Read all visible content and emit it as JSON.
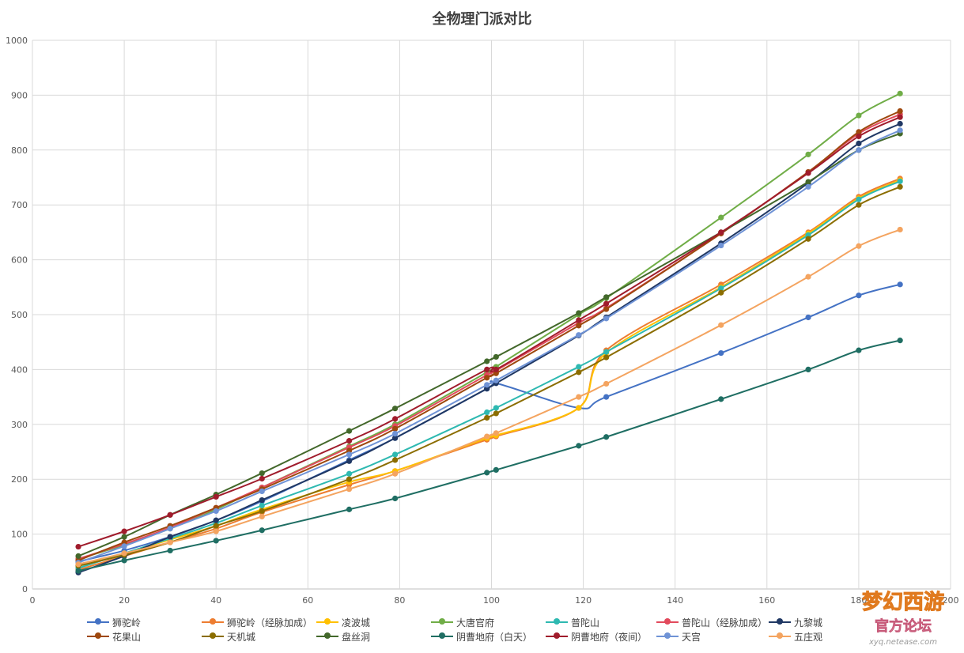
{
  "chart_data": {
    "type": "line",
    "title": "全物理门派对比",
    "xlim": [
      0,
      200
    ],
    "ylim": [
      0,
      1000
    ],
    "xticks": [
      0,
      20,
      40,
      60,
      80,
      100,
      120,
      140,
      160,
      180,
      200
    ],
    "yticks": [
      0,
      100,
      200,
      300,
      400,
      500,
      600,
      700,
      800,
      900,
      1000
    ],
    "grid": true,
    "legend_position": "bottom",
    "series": [
      {
        "name": "狮驼岭",
        "color": "#4472C4",
        "points": [
          [
            10,
            50
          ],
          [
            20,
            70
          ],
          [
            30,
            95
          ],
          [
            40,
            125
          ],
          [
            50,
            160
          ],
          [
            69,
            235
          ],
          [
            79,
            275
          ],
          [
            99,
            365
          ],
          [
            101,
            375
          ],
          [
            119,
            330
          ],
          [
            125,
            350
          ],
          [
            150,
            430
          ],
          [
            169,
            495
          ],
          [
            180,
            535
          ],
          [
            189,
            555
          ]
        ]
      },
      {
        "name": "狮驼岭（经脉加成）",
        "color": "#ED7D31",
        "points": [
          [
            10,
            35
          ],
          [
            20,
            60
          ],
          [
            30,
            85
          ],
          [
            40,
            110
          ],
          [
            50,
            140
          ],
          [
            69,
            190
          ],
          [
            79,
            215
          ],
          [
            99,
            272
          ],
          [
            101,
            278
          ],
          [
            119,
            330
          ],
          [
            125,
            435
          ],
          [
            150,
            555
          ],
          [
            169,
            650
          ],
          [
            180,
            715
          ],
          [
            189,
            748
          ]
        ]
      },
      {
        "name": "凌波城",
        "color": "#FFC000",
        "points": [
          [
            10,
            45
          ],
          [
            20,
            65
          ],
          [
            30,
            90
          ],
          [
            40,
            115
          ],
          [
            50,
            145
          ],
          [
            69,
            195
          ],
          [
            79,
            215
          ],
          [
            99,
            275
          ],
          [
            101,
            280
          ],
          [
            119,
            330
          ],
          [
            125,
            430
          ],
          [
            150,
            550
          ],
          [
            169,
            648
          ],
          [
            180,
            712
          ],
          [
            189,
            745
          ]
        ]
      },
      {
        "name": "大唐官府",
        "color": "#70AD47",
        "points": [
          [
            10,
            55
          ],
          [
            20,
            80
          ],
          [
            30,
            110
          ],
          [
            40,
            145
          ],
          [
            50,
            185
          ],
          [
            69,
            260
          ],
          [
            79,
            300
          ],
          [
            99,
            395
          ],
          [
            101,
            405
          ],
          [
            119,
            500
          ],
          [
            125,
            530
          ],
          [
            150,
            677
          ],
          [
            169,
            792
          ],
          [
            180,
            863
          ],
          [
            189,
            903
          ]
        ]
      },
      {
        "name": "普陀山",
        "color": "#2EB9B1",
        "points": [
          [
            10,
            38
          ],
          [
            20,
            65
          ],
          [
            30,
            92
          ],
          [
            40,
            120
          ],
          [
            50,
            152
          ],
          [
            69,
            210
          ],
          [
            79,
            245
          ],
          [
            99,
            322
          ],
          [
            101,
            330
          ],
          [
            119,
            405
          ],
          [
            125,
            432
          ],
          [
            150,
            548
          ],
          [
            169,
            645
          ],
          [
            180,
            710
          ],
          [
            189,
            743
          ]
        ]
      },
      {
        "name": "普陀山（经脉加成）",
        "color": "#E24A5C",
        "points": [
          [
            10,
            55
          ],
          [
            20,
            82
          ],
          [
            30,
            112
          ],
          [
            40,
            148
          ],
          [
            50,
            185
          ],
          [
            69,
            258
          ],
          [
            79,
            297
          ],
          [
            99,
            390
          ],
          [
            101,
            398
          ],
          [
            119,
            485
          ],
          [
            125,
            512
          ],
          [
            150,
            648
          ],
          [
            169,
            760
          ],
          [
            180,
            830
          ],
          [
            189,
            865
          ]
        ]
      },
      {
        "name": "九黎城",
        "color": "#203864",
        "points": [
          [
            10,
            30
          ],
          [
            20,
            60
          ],
          [
            30,
            95
          ],
          [
            40,
            125
          ],
          [
            50,
            162
          ],
          [
            69,
            233
          ],
          [
            79,
            275
          ],
          [
            99,
            365
          ],
          [
            101,
            375
          ],
          [
            119,
            462
          ],
          [
            125,
            495
          ],
          [
            150,
            630
          ],
          [
            169,
            740
          ],
          [
            180,
            812
          ],
          [
            189,
            848
          ]
        ]
      },
      {
        "name": "花果山",
        "color": "#9E480E",
        "points": [
          [
            10,
            52
          ],
          [
            20,
            85
          ],
          [
            30,
            115
          ],
          [
            40,
            148
          ],
          [
            50,
            182
          ],
          [
            69,
            252
          ],
          [
            79,
            292
          ],
          [
            99,
            385
          ],
          [
            101,
            393
          ],
          [
            119,
            480
          ],
          [
            125,
            510
          ],
          [
            150,
            648
          ],
          [
            169,
            760
          ],
          [
            180,
            833
          ],
          [
            189,
            871
          ]
        ]
      },
      {
        "name": "天机城",
        "color": "#8B6D00",
        "points": [
          [
            10,
            42
          ],
          [
            20,
            62
          ],
          [
            30,
            85
          ],
          [
            40,
            115
          ],
          [
            50,
            142
          ],
          [
            69,
            200
          ],
          [
            79,
            235
          ],
          [
            99,
            312
          ],
          [
            101,
            320
          ],
          [
            119,
            395
          ],
          [
            125,
            422
          ],
          [
            150,
            540
          ],
          [
            169,
            638
          ],
          [
            180,
            700
          ],
          [
            189,
            733
          ]
        ]
      },
      {
        "name": "盘丝洞",
        "color": "#43682B",
        "points": [
          [
            10,
            60
          ],
          [
            20,
            95
          ],
          [
            30,
            135
          ],
          [
            40,
            172
          ],
          [
            50,
            211
          ],
          [
            69,
            288
          ],
          [
            79,
            329
          ],
          [
            99,
            415
          ],
          [
            101,
            423
          ],
          [
            119,
            503
          ],
          [
            125,
            532
          ],
          [
            150,
            650
          ],
          [
            169,
            742
          ],
          [
            180,
            800
          ],
          [
            189,
            830
          ]
        ]
      },
      {
        "name": "阴曹地府（白天）",
        "color": "#1F6E63",
        "points": [
          [
            10,
            33
          ],
          [
            20,
            52
          ],
          [
            30,
            70
          ],
          [
            40,
            88
          ],
          [
            50,
            107
          ],
          [
            69,
            145
          ],
          [
            79,
            165
          ],
          [
            99,
            212
          ],
          [
            101,
            217
          ],
          [
            119,
            261
          ],
          [
            125,
            277
          ],
          [
            150,
            346
          ],
          [
            169,
            400
          ],
          [
            180,
            435
          ],
          [
            189,
            453
          ]
        ]
      },
      {
        "name": "阴曹地府（夜间）",
        "color": "#A01C2C",
        "points": [
          [
            10,
            77
          ],
          [
            20,
            105
          ],
          [
            30,
            135
          ],
          [
            40,
            168
          ],
          [
            50,
            201
          ],
          [
            69,
            270
          ],
          [
            79,
            310
          ],
          [
            99,
            400
          ],
          [
            101,
            400
          ],
          [
            119,
            490
          ],
          [
            125,
            520
          ],
          [
            150,
            650
          ],
          [
            169,
            758
          ],
          [
            180,
            825
          ],
          [
            189,
            860
          ]
        ]
      },
      {
        "name": "天宫",
        "color": "#6F93D6",
        "points": [
          [
            10,
            48
          ],
          [
            20,
            78
          ],
          [
            30,
            110
          ],
          [
            40,
            142
          ],
          [
            50,
            178
          ],
          [
            69,
            245
          ],
          [
            79,
            283
          ],
          [
            99,
            372
          ],
          [
            101,
            380
          ],
          [
            119,
            463
          ],
          [
            125,
            493
          ],
          [
            150,
            626
          ],
          [
            169,
            733
          ],
          [
            180,
            800
          ],
          [
            189,
            836
          ]
        ]
      },
      {
        "name": "五庄观",
        "color": "#F4A460",
        "points": [
          [
            10,
            45
          ],
          [
            20,
            65
          ],
          [
            30,
            85
          ],
          [
            40,
            105
          ],
          [
            50,
            132
          ],
          [
            69,
            182
          ],
          [
            79,
            210
          ],
          [
            99,
            278
          ],
          [
            101,
            284
          ],
          [
            119,
            350
          ],
          [
            125,
            374
          ],
          [
            150,
            481
          ],
          [
            169,
            569
          ],
          [
            180,
            625
          ],
          [
            189,
            655
          ]
        ]
      }
    ]
  },
  "watermark": {
    "logo_text": "梦幻西游",
    "subtitle": "官方论坛",
    "url": "xyq.netease.com"
  }
}
